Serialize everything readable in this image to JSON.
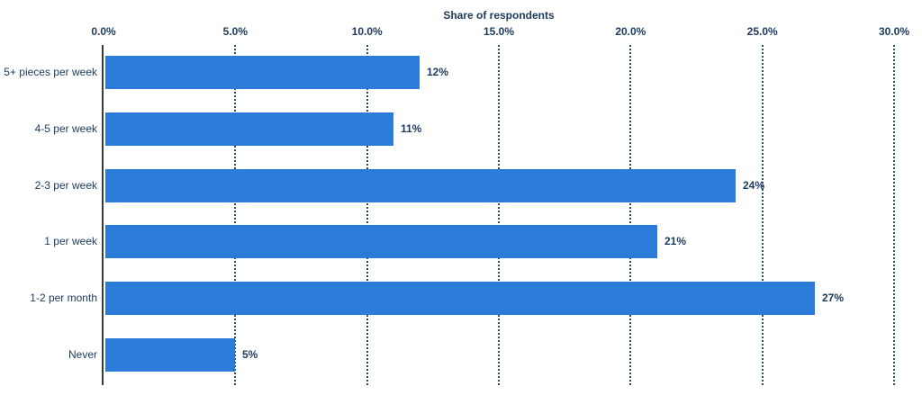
{
  "chart_data": {
    "type": "bar",
    "orientation": "horizontal",
    "title": "Share of respondents",
    "categories": [
      "5+ pieces per week",
      "4-5 per week",
      "2-3 per week",
      "1 per week",
      "1-2 per month",
      "Never"
    ],
    "values": [
      12,
      11,
      24,
      21,
      27,
      5
    ],
    "value_labels": [
      "12%",
      "11%",
      "24%",
      "21%",
      "27%",
      "5%"
    ],
    "x_ticks": [
      {
        "value": 0,
        "label": "0.0%"
      },
      {
        "value": 5,
        "label": "5.0%"
      },
      {
        "value": 10,
        "label": "10.0%"
      },
      {
        "value": 15,
        "label": "15.0%"
      },
      {
        "value": 20,
        "label": "20.0%"
      },
      {
        "value": 25,
        "label": "25.0%"
      },
      {
        "value": 30,
        "label": "30.0%"
      }
    ],
    "xlim": [
      0,
      30
    ],
    "xlabel": "Share of respondents",
    "ylabel": "",
    "legend": "none",
    "grid": "dotted-vertical",
    "colors": {
      "bar": "#2b7bd9",
      "text": "#1b3a5e",
      "axis_line": "#3a3a3a",
      "gridline": "#2a4a68",
      "background": "#ffffff"
    }
  }
}
